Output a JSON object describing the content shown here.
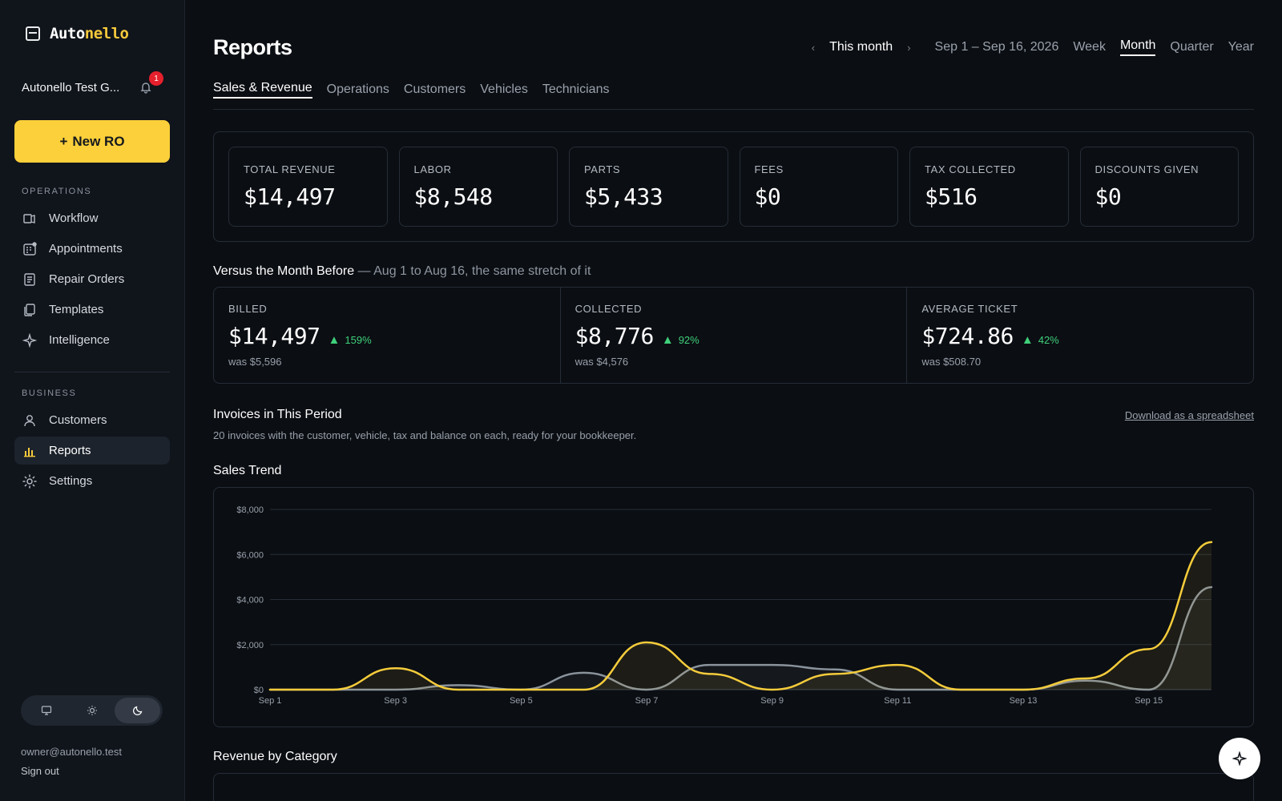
{
  "brand": {
    "name_part1": "Auto",
    "name_part2": "nello"
  },
  "org": {
    "name": "Autonello Test G...",
    "notification_count": "1"
  },
  "sidebar": {
    "new_ro_label": "New RO",
    "sections": [
      {
        "label": "OPERATIONS",
        "items": [
          "Workflow",
          "Appointments",
          "Repair Orders",
          "Templates",
          "Intelligence"
        ]
      },
      {
        "label": "BUSINESS",
        "items": [
          "Customers",
          "Reports",
          "Settings"
        ]
      }
    ],
    "active_item": "Reports",
    "user_email": "owner@autonello.test",
    "sign_out": "Sign out"
  },
  "header": {
    "title": "Reports",
    "period_label": "This month",
    "date_range": "Sep 1 – Sep 16, 2026",
    "period_options": [
      "Week",
      "Month",
      "Quarter",
      "Year"
    ],
    "active_period": "Month"
  },
  "tabs": [
    "Sales & Revenue",
    "Operations",
    "Customers",
    "Vehicles",
    "Technicians"
  ],
  "kpis": [
    {
      "label": "TOTAL REVENUE",
      "value": "$14,497"
    },
    {
      "label": "LABOR",
      "value": "$8,548"
    },
    {
      "label": "PARTS",
      "value": "$5,433"
    },
    {
      "label": "FEES",
      "value": "$0"
    },
    {
      "label": "TAX COLLECTED",
      "value": "$516"
    },
    {
      "label": "DISCOUNTS GIVEN",
      "value": "$0"
    }
  ],
  "versus": {
    "title": "Versus the Month Before",
    "subtitle": " — Aug 1 to Aug 16, the same stretch of it",
    "items": [
      {
        "label": "BILLED",
        "value": "$14,497",
        "pct": "159%",
        "was": "was $5,596"
      },
      {
        "label": "COLLECTED",
        "value": "$8,776",
        "pct": "92%",
        "was": "was $4,576"
      },
      {
        "label": "AVERAGE TICKET",
        "value": "$724.86",
        "pct": "42%",
        "was": "was $508.70"
      }
    ]
  },
  "invoices": {
    "title": "Invoices in This Period",
    "subtitle": "20 invoices with the customer, vehicle, tax and balance on each, ready for your bookkeeper.",
    "download_label": "Download as a spreadsheet"
  },
  "sales_trend_title": "Sales Trend",
  "revenue_by_category_title": "Revenue by Category",
  "chart_data": {
    "type": "area",
    "x": [
      "Sep 1",
      "Sep 2",
      "Sep 3",
      "Sep 4",
      "Sep 5",
      "Sep 6",
      "Sep 7",
      "Sep 8",
      "Sep 9",
      "Sep 10",
      "Sep 11",
      "Sep 12",
      "Sep 13",
      "Sep 14",
      "Sep 15",
      "Sep 16"
    ],
    "x_tick_labels": [
      "Sep 1",
      "Sep 3",
      "Sep 5",
      "Sep 7",
      "Sep 9",
      "Sep 11",
      "Sep 13",
      "Sep 15"
    ],
    "y_tick_labels": [
      "$0",
      "$2,000",
      "$4,000",
      "$6,000",
      "$8,000"
    ],
    "ylim": [
      0,
      8000
    ],
    "grid": true,
    "series": [
      {
        "color": "#f5cc3b",
        "values": [
          0,
          0,
          950,
          0,
          0,
          0,
          2100,
          700,
          0,
          700,
          1100,
          0,
          0,
          500,
          1800,
          6550
        ]
      },
      {
        "color": "#8a939c",
        "values": [
          0,
          0,
          0,
          200,
          0,
          750,
          0,
          1100,
          1100,
          900,
          0,
          0,
          0,
          400,
          0,
          4550
        ]
      }
    ]
  },
  "colors": {
    "accent": "#fcd03a",
    "positive": "#3fd07a",
    "alert": "#e5202c"
  }
}
